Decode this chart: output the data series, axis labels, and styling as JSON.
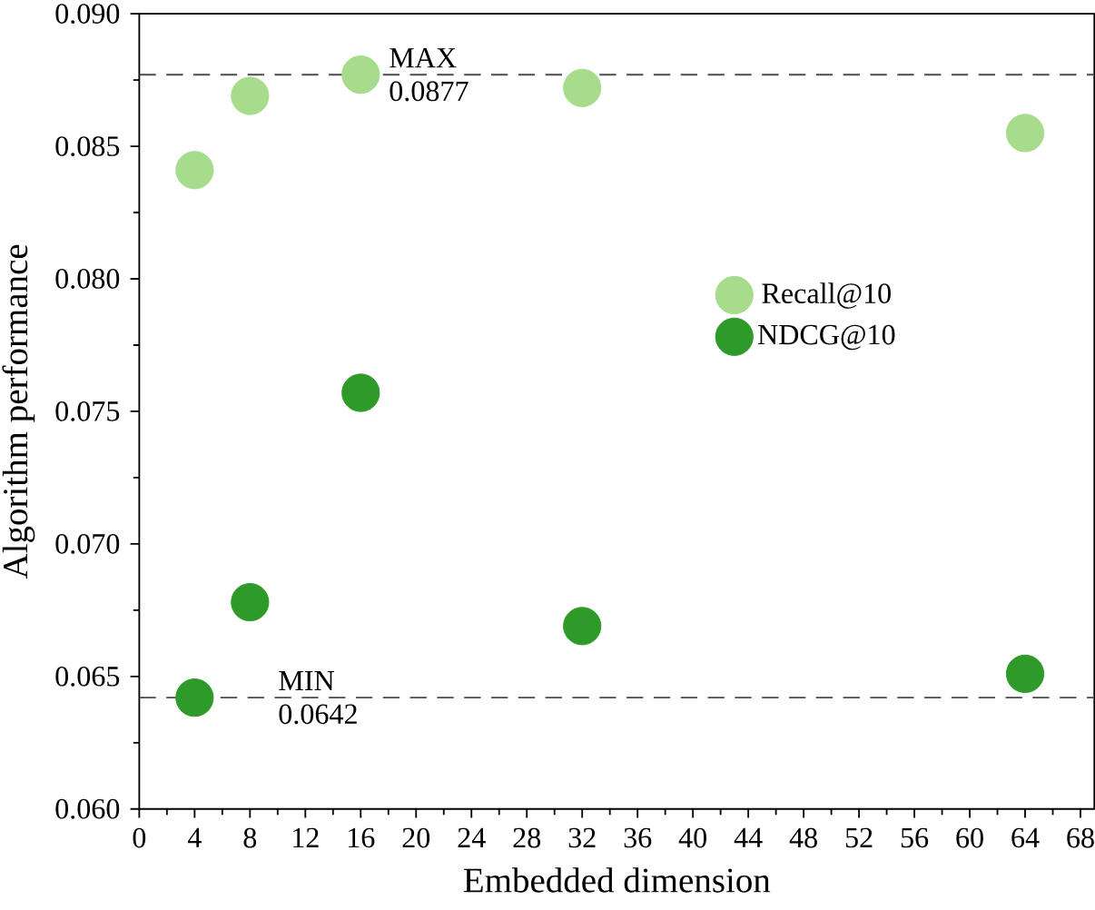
{
  "chart_data": {
    "type": "scatter",
    "xlabel": "Embedded dimension",
    "ylabel": "Algorithm performance",
    "xlim": [
      0,
      69
    ],
    "xticks": [
      0,
      4,
      8,
      12,
      16,
      20,
      24,
      28,
      32,
      36,
      40,
      44,
      48,
      52,
      56,
      60,
      64,
      68
    ],
    "ylim": [
      0.06,
      0.09
    ],
    "yticks": [
      {
        "value": 0.06,
        "label": "0.060"
      },
      {
        "value": 0.065,
        "label": "0.065"
      },
      {
        "value": 0.07,
        "label": "0.070"
      },
      {
        "value": 0.075,
        "label": "0.075"
      },
      {
        "value": 0.08,
        "label": "0.080"
      },
      {
        "value": 0.085,
        "label": "0.085"
      },
      {
        "value": 0.09,
        "label": "0.090"
      }
    ],
    "marker": "circle",
    "legend": "right",
    "series": [
      {
        "name": "Recall@10",
        "color": "#a6dc8c",
        "x": [
          4,
          8,
          16,
          32,
          64
        ],
        "values": [
          0.0841,
          0.0869,
          0.0877,
          0.0872,
          0.0855
        ]
      },
      {
        "name": "NDCG@10",
        "color": "#2e9a2a",
        "x": [
          4,
          8,
          16,
          32,
          64
        ],
        "values": [
          0.0642,
          0.0678,
          0.0757,
          0.0669,
          0.0651
        ]
      }
    ],
    "ref_lines": [
      {
        "axis": "y",
        "value": 0.0877,
        "label": "MAX 0.0877",
        "line_style": "dashed"
      },
      {
        "axis": "y",
        "value": 0.0642,
        "label": "MIN 0.0642",
        "line_style": "dashed"
      }
    ]
  }
}
